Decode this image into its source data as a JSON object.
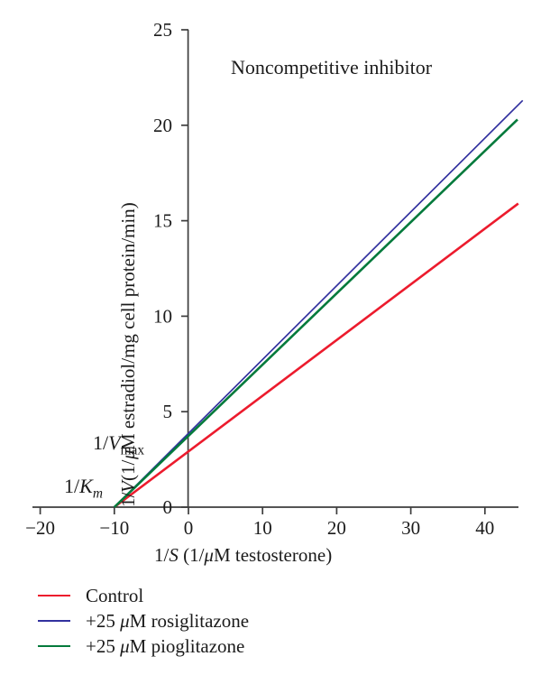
{
  "figure": {
    "background": "#ffffff"
  },
  "chart_data": {
    "type": "line",
    "title": "Noncompetitive inhibitor",
    "xlabel": "1/S (1/μM testosterone)",
    "ylabel": "1/V (1/μM estradiol/mg cell protein/min)",
    "xlim": [
      -21,
      44.6
    ],
    "ylim": [
      0,
      25
    ],
    "x_ticks": [
      -20,
      -10,
      0,
      10,
      20,
      30,
      40
    ],
    "y_ticks": [
      0,
      5,
      10,
      15,
      20,
      25
    ],
    "grid": false,
    "axis_color": "#3d3d3d",
    "text_color": "#1b1b1b",
    "common_x_intercept": -10,
    "annotations": [
      {
        "id": "vmax",
        "text": "1/Vmax"
      },
      {
        "id": "km",
        "text": "1/Km"
      }
    ],
    "series": [
      {
        "id": "control",
        "name": "Control",
        "color": "#ec1b2d",
        "width": 2.6,
        "slope": 0.29,
        "y_intercept": 2.9,
        "points": [
          [
            -10,
            0
          ],
          [
            44.5,
            15.9
          ]
        ]
      },
      {
        "id": "rosiglitazone",
        "name": "+25 μM rosiglitazone",
        "color": "#32319f",
        "width": 1.7,
        "slope": 0.39,
        "y_intercept": 3.9,
        "points": [
          [
            -10,
            0
          ],
          [
            45.1,
            21.3
          ]
        ]
      },
      {
        "id": "pioglitazone",
        "name": "+25 μM pioglitazone",
        "color": "#047a3c",
        "width": 2.6,
        "slope": 0.37,
        "y_intercept": 3.7,
        "points": [
          [
            -10,
            0
          ],
          [
            44.4,
            20.3
          ]
        ]
      }
    ],
    "legend_position": "bottom-left"
  },
  "rich": {
    "xlabel": [
      {
        "t": "1/"
      },
      {
        "t": "S",
        "i": true
      },
      {
        "t": " (1/"
      },
      {
        "t": "μ",
        "i": true
      },
      {
        "t": "M testosterone)"
      }
    ],
    "ylabel": [
      {
        "t": "1/"
      },
      {
        "t": "V",
        "i": true
      },
      {
        "t": " (1/"
      },
      {
        "t": "μ",
        "i": true
      },
      {
        "t": "M estradiol/mg cell protein/min)"
      }
    ],
    "vmax": [
      {
        "t": "1/"
      },
      {
        "t": "V",
        "i": true
      },
      {
        "t": "max",
        "sub": true
      }
    ],
    "km": [
      {
        "t": "1/"
      },
      {
        "t": "K",
        "i": true
      },
      {
        "t": "m",
        "sub": true,
        "i": true
      }
    ]
  },
  "legend": {
    "items": [
      {
        "id": "control",
        "color": "#ec1b2d",
        "rich": [
          {
            "t": "Control"
          }
        ]
      },
      {
        "id": "rosiglitazone",
        "color": "#32319f",
        "rich": [
          {
            "t": "+25 "
          },
          {
            "t": "μ",
            "i": true
          },
          {
            "t": "M rosiglitazone"
          }
        ]
      },
      {
        "id": "pioglitazone",
        "color": "#047a3c",
        "rich": [
          {
            "t": "+25 "
          },
          {
            "t": "μ",
            "i": true
          },
          {
            "t": "M pioglitazone"
          }
        ]
      }
    ]
  }
}
